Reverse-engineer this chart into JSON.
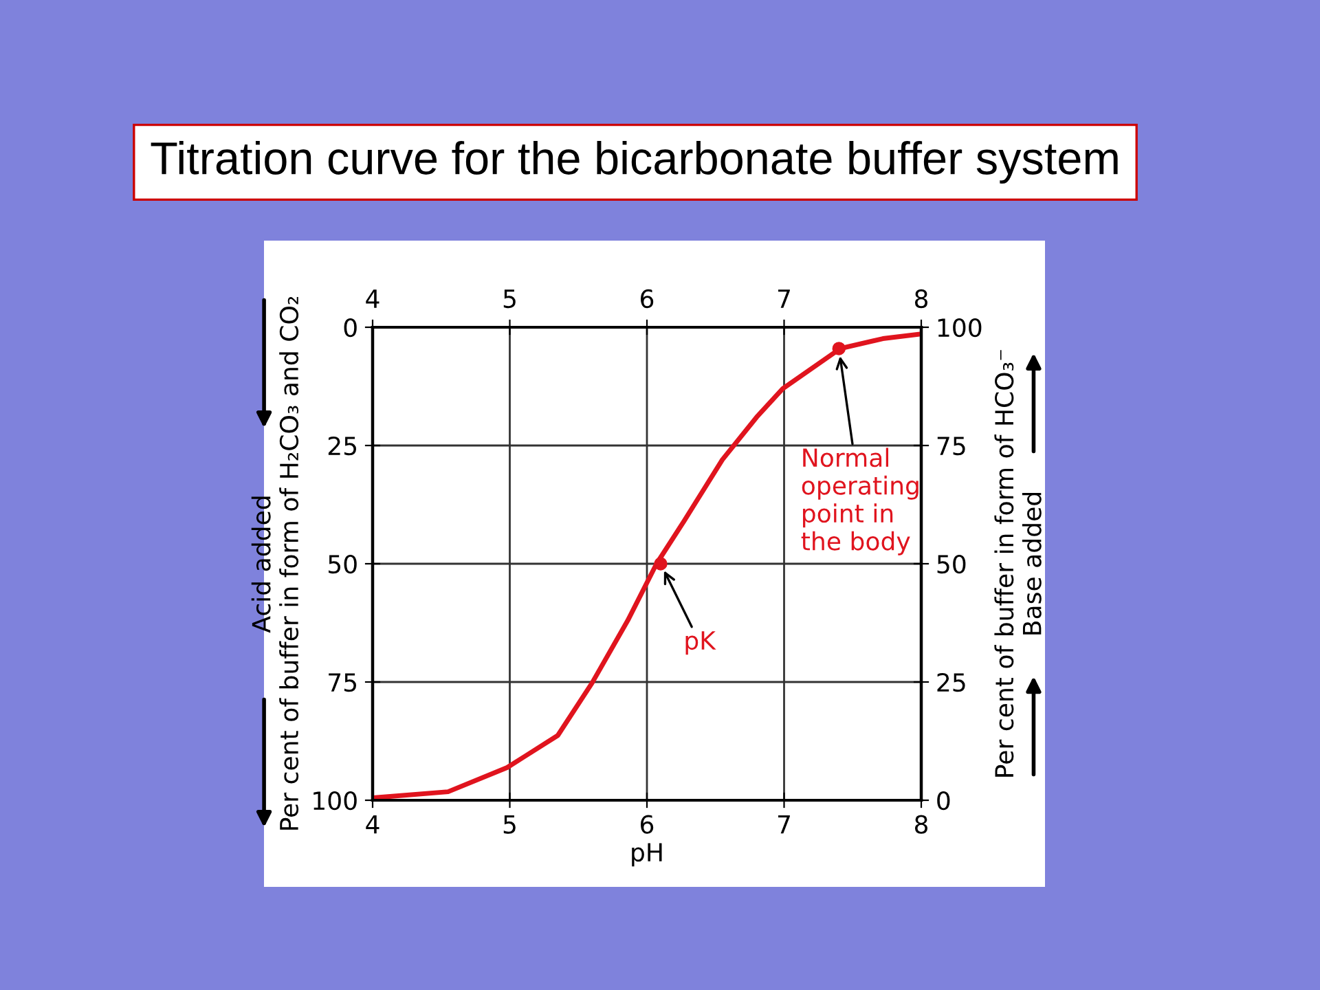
{
  "chart_data": {
    "type": "line",
    "title": "Titration curve for the bicarbonate buffer system",
    "xlabel": "pH",
    "ylabel": "Acid added\nPer cent of buffer in form of H₂CO₃ and CO₂",
    "y2label": "Per cent of buffer in form of HCO₃⁻\nBase added",
    "x": [
      4,
      4.55,
      4.98,
      5.35,
      5.6,
      5.86,
      6.07,
      6.27,
      6.55,
      6.8,
      6.99,
      7.41,
      7.72,
      8
    ],
    "series": [
      {
        "color": "#e0141e",
        "axis": "y2",
        "values": [
          0.5,
          1.8,
          6.9,
          13.7,
          24.8,
          38,
          50,
          59,
          72,
          81,
          87,
          95.5,
          97.6,
          98.6
        ]
      },
      {
        "type": "scatter",
        "marker": "circle",
        "color": "#e0141e",
        "axis": "y2",
        "x": [
          6.1,
          7.4
        ],
        "values": [
          50,
          95.5
        ]
      }
    ],
    "xlim": [
      4,
      8
    ],
    "xticks": [
      4,
      5,
      6,
      7,
      8
    ],
    "x2lim": [
      4,
      8
    ],
    "x2ticks": [
      4,
      5,
      6,
      7,
      8
    ],
    "ylim": [
      100,
      0
    ],
    "yticks": [
      0,
      25,
      50,
      75,
      100
    ],
    "y2lim": [
      0,
      100
    ],
    "y2ticks": [
      0,
      25,
      50,
      75,
      100
    ],
    "grid": true,
    "marker": "none",
    "line_style": "solid",
    "annotations": [
      {
        "text": "pK",
        "x": 6.1,
        "y": 50
      },
      {
        "text": "Normal\noperating\npoint in\nthe body",
        "x": 7.4,
        "y": 4.5
      }
    ]
  }
}
